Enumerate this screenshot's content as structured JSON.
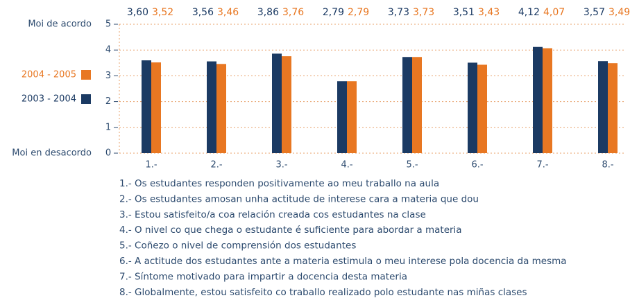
{
  "chart_data": {
    "type": "bar",
    "y_top_label": "Moi de acordo",
    "y_bottom_label": "Moi en desacordo",
    "categories": [
      "1.-",
      "2.-",
      "3.-",
      "4.-",
      "5.-",
      "6.-",
      "7.-",
      "8.-"
    ],
    "series": [
      {
        "name": "2003 - 2004",
        "color": "#1b3a63",
        "values": [
          3.6,
          3.56,
          3.86,
          2.79,
          3.73,
          3.51,
          4.12,
          3.57
        ],
        "value_labels": [
          "3,60",
          "3,56",
          "3,86",
          "2,79",
          "3,73",
          "3,51",
          "4,12",
          "3,57"
        ]
      },
      {
        "name": "2004 - 2005",
        "color": "#e87722",
        "values": [
          3.52,
          3.46,
          3.76,
          2.79,
          3.73,
          3.43,
          4.07,
          3.49
        ],
        "value_labels": [
          "3,52",
          "3,46",
          "3,76",
          "2,79",
          "3,73",
          "3,43",
          "4,07",
          "3,49"
        ]
      }
    ],
    "ylim": [
      0,
      5
    ],
    "yticks": [
      0,
      1,
      2,
      3,
      4,
      5
    ],
    "grid": true,
    "legend": "left",
    "notes": [
      "1.- Os estudantes responden positivamente ao meu traballo na aula",
      "2.- Os estudantes amosan unha actitude de interese cara a materia que dou",
      "3.- Estou satisfeito/a coa relación creada cos estudantes na clase",
      "4.- O nivel co que chega o estudante é suficiente para abordar a materia",
      "5.- Coñezo o nivel de comprensión dos estudantes",
      "6.- A actitude dos estudantes ante a materia estimula o meu interese pola docencia da mesma",
      "7.- Síntome motivado para impartir a docencia desta materia",
      "8.- Globalmente, estou satisfeito co traballo realizado polo estudante nas miñas clases"
    ]
  }
}
